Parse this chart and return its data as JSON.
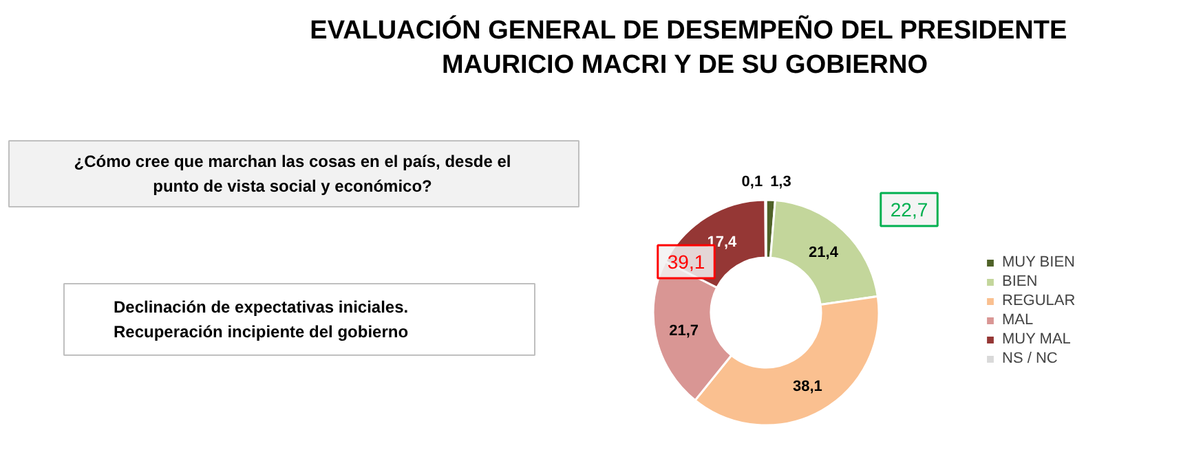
{
  "chart_data": {
    "type": "donut",
    "title": "EVALUACIÓN GENERAL DE DESEMPEÑO DEL PRESIDENTE MAURICIO MACRI  Y DE SU GOBIERNO",
    "subtitle": "¿Cómo cree que marchan las cosas en el país, desde el punto de vista social y económico?",
    "categories": [
      "MUY BIEN",
      "BIEN",
      "REGULAR",
      "MAL",
      "MUY MAL",
      "NS / NC"
    ],
    "values": [
      1.3,
      21.4,
      38.1,
      21.7,
      17.4,
      0.1
    ],
    "value_labels": [
      "1,3",
      "21,4",
      "38,1",
      "21,7",
      "17,4",
      "0,1"
    ],
    "colors": [
      "#4f6228",
      "#c3d69b",
      "#fac090",
      "#d99694",
      "#953735",
      "#d9d9d9"
    ],
    "annotations": [
      "Declinación de expectativas iniciales. Recuperación incipiente del gobierno",
      "22,7",
      "39,1"
    ],
    "legend": "right"
  }
}
